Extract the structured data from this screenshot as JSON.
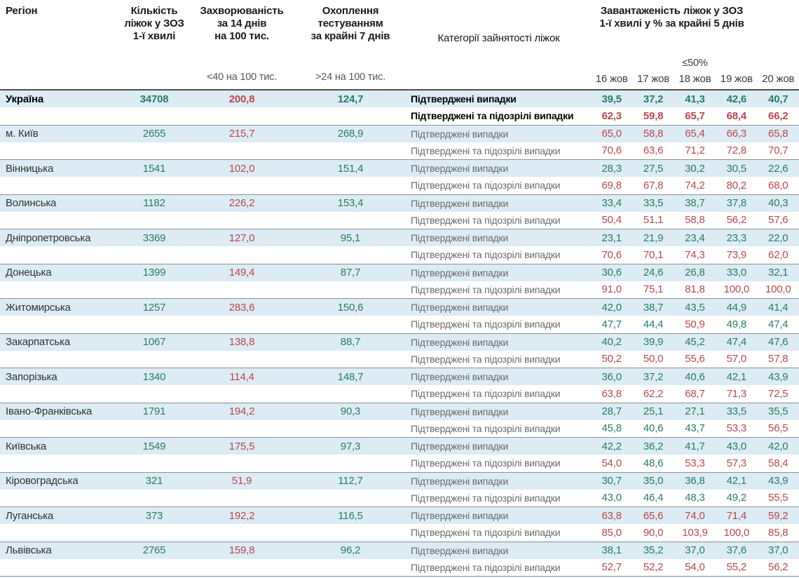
{
  "header": {
    "region": "Регіон",
    "beds_lines": [
      "Кількість",
      "ліжок у ЗОЗ",
      "1-ї хвилі"
    ],
    "incidence_lines": [
      "Захворюваність",
      "за 14 днів",
      "на 100 тис."
    ],
    "testing_lines": [
      "Охоплення",
      "тестуванням",
      "за крайні 7 днів"
    ],
    "categories_label": "Категорії зайнятості ліжок",
    "load_title_lines": [
      "Завантаженість ліжок у ЗОЗ",
      "1-ї хвилі у % за крайні 5 днів"
    ],
    "incidence_threshold": "<40 на 100 тис.",
    "testing_threshold": ">24 на 100 тис.",
    "load_threshold": "≤50%"
  },
  "colors": {
    "green": "#287e5f",
    "red": "#bb474c",
    "row_highlight_blue": "#dcebf4"
  },
  "chart_data": {
    "type": "table",
    "title": "Завантаженість ліжок у ЗОЗ 1-ї хвилі у % за крайні 5 днів",
    "column_headers": [
      "Регіон",
      "Кількість ліжок у ЗОЗ 1-ї хвилі",
      "Захворюваність за 14 днів на 100 тис.",
      "Охоплення тестуванням за крайні 7 днів",
      "Категорії зайнятості ліжок",
      "16 жов",
      "17 жов",
      "18 жов",
      "19 жов",
      "20 жов"
    ],
    "dates": [
      "16 жов",
      "17 жов",
      "18 жов",
      "19 жов",
      "20 жов"
    ],
    "categories": [
      "Підтверджені випадки",
      "Підтверджені та підозрілі випадки"
    ],
    "value_rule": "values below 50 shown green, 50 and above shown red",
    "rows": [
      {
        "region": "Україна",
        "emphasis": true,
        "beds": "34708",
        "incidence": "200,8",
        "testing": "124,7",
        "confirmed": [
          "39,5",
          "37,2",
          "41,3",
          "42,6",
          "40,7"
        ],
        "confirmed_suspected": [
          "62,3",
          "59,8",
          "65,7",
          "68,4",
          "66,2"
        ]
      },
      {
        "region": "м. Київ",
        "emphasis": false,
        "beds": "2655",
        "incidence": "215,7",
        "testing": "268,9",
        "confirmed": [
          "65,0",
          "58,8",
          "65,4",
          "66,3",
          "65,8"
        ],
        "confirmed_suspected": [
          "70,6",
          "63,6",
          "71,2",
          "72,8",
          "70,7"
        ]
      },
      {
        "region": "Вінницька",
        "emphasis": false,
        "beds": "1541",
        "incidence": "102,0",
        "testing": "151,4",
        "confirmed": [
          "28,3",
          "27,5",
          "30,2",
          "30,5",
          "22,6"
        ],
        "confirmed_suspected": [
          "69,8",
          "67,8",
          "74,2",
          "80,2",
          "68,0"
        ]
      },
      {
        "region": "Волинська",
        "emphasis": false,
        "beds": "1182",
        "incidence": "226,2",
        "testing": "153,4",
        "confirmed": [
          "33,4",
          "33,5",
          "38,7",
          "37,8",
          "40,3"
        ],
        "confirmed_suspected": [
          "50,4",
          "51,1",
          "58,8",
          "56,2",
          "57,6"
        ]
      },
      {
        "region": "Дніпропетровська",
        "emphasis": false,
        "beds": "3369",
        "incidence": "127,0",
        "testing": "95,1",
        "confirmed": [
          "23,1",
          "21,9",
          "23,4",
          "23,3",
          "22,0"
        ],
        "confirmed_suspected": [
          "70,6",
          "70,1",
          "74,3",
          "73,9",
          "62,0"
        ]
      },
      {
        "region": "Донецька",
        "emphasis": false,
        "beds": "1399",
        "incidence": "149,4",
        "testing": "87,7",
        "confirmed": [
          "30,6",
          "24,6",
          "26,8",
          "33,0",
          "32,1"
        ],
        "confirmed_suspected": [
          "91,0",
          "75,1",
          "81,8",
          "100,0",
          "100,0"
        ]
      },
      {
        "region": "Житомирська",
        "emphasis": false,
        "beds": "1257",
        "incidence": "283,6",
        "testing": "150,6",
        "confirmed": [
          "42,0",
          "38,7",
          "43,5",
          "44,9",
          "41,4"
        ],
        "confirmed_suspected": [
          "47,7",
          "44,4",
          "50,9",
          "49,8",
          "47,4"
        ]
      },
      {
        "region": "Закарпатська",
        "emphasis": false,
        "beds": "1067",
        "incidence": "138,8",
        "testing": "88,7",
        "confirmed": [
          "40,2",
          "39,9",
          "45,2",
          "47,4",
          "47,6"
        ],
        "confirmed_suspected": [
          "50,2",
          "50,0",
          "55,6",
          "57,0",
          "57,8"
        ]
      },
      {
        "region": "Запорізька",
        "emphasis": false,
        "beds": "1340",
        "incidence": "114,4",
        "testing": "148,7",
        "confirmed": [
          "36,0",
          "37,2",
          "40,6",
          "42,1",
          "43,9"
        ],
        "confirmed_suspected": [
          "63,8",
          "62,2",
          "68,7",
          "71,3",
          "72,5"
        ]
      },
      {
        "region": "Івано-Франківська",
        "emphasis": false,
        "beds": "1791",
        "incidence": "194,2",
        "testing": "90,3",
        "confirmed": [
          "28,7",
          "25,1",
          "27,1",
          "33,5",
          "35,5"
        ],
        "confirmed_suspected": [
          "45,8",
          "40,6",
          "43,7",
          "53,3",
          "56,5"
        ]
      },
      {
        "region": "Київська",
        "emphasis": false,
        "beds": "1549",
        "incidence": "175,5",
        "testing": "97,3",
        "confirmed": [
          "42,2",
          "36,2",
          "41,7",
          "43,0",
          "42,0"
        ],
        "confirmed_suspected": [
          "54,0",
          "48,6",
          "53,3",
          "57,3",
          "58,4"
        ]
      },
      {
        "region": "Кіровоградська",
        "emphasis": false,
        "beds": "321",
        "incidence": "51,9",
        "testing": "112,7",
        "confirmed": [
          "30,7",
          "35,0",
          "36,8",
          "42,1",
          "43,9"
        ],
        "confirmed_suspected": [
          "43,0",
          "46,4",
          "48,3",
          "49,2",
          "55,5"
        ]
      },
      {
        "region": "Луганська",
        "emphasis": false,
        "beds": "373",
        "incidence": "192,2",
        "testing": "116,5",
        "confirmed": [
          "63,8",
          "65,6",
          "74,0",
          "71,4",
          "59,2"
        ],
        "confirmed_suspected": [
          "85,0",
          "90,0",
          "103,9",
          "100,0",
          "85,8"
        ]
      },
      {
        "region": "Львівська",
        "emphasis": false,
        "beds": "2765",
        "incidence": "159,8",
        "testing": "96,2",
        "confirmed": [
          "38,1",
          "35,2",
          "37,0",
          "37,6",
          "37,0"
        ],
        "confirmed_suspected": [
          "52,7",
          "52,2",
          "54,0",
          "55,2",
          "56,2"
        ]
      }
    ]
  }
}
